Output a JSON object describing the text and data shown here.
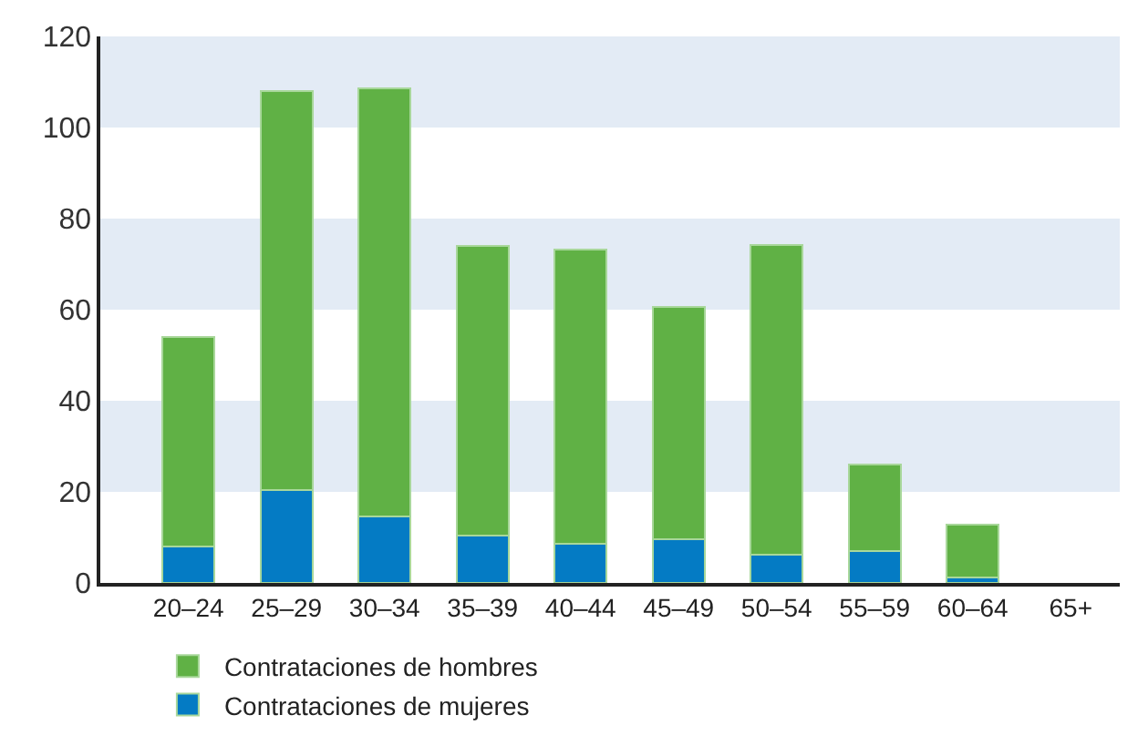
{
  "chart_data": {
    "type": "bar",
    "stacked": true,
    "categories": [
      "20–24",
      "25–29",
      "30–34",
      "35–39",
      "40–44",
      "45–49",
      "50–54",
      "55–59",
      "60–64",
      "65+"
    ],
    "series": [
      {
        "name": "Contrataciones de mujeres",
        "color": "#047bc4",
        "values": [
          8,
          20.5,
          14.6,
          10.5,
          8.7,
          9.7,
          6.2,
          7,
          1.2,
          null
        ]
      },
      {
        "name": "Contrataciones de hombres",
        "color": "#60b145",
        "values": [
          46,
          87.5,
          94,
          63.5,
          64.5,
          51,
          68,
          19,
          11.7,
          null
        ]
      }
    ],
    "ylim": [
      0,
      120
    ],
    "yticks": [
      0,
      20,
      40,
      60,
      80,
      100,
      120
    ],
    "grid": false,
    "legend": "bottom left",
    "bands": [
      {
        "axis": "y",
        "from": 20,
        "to": 40,
        "color": "#e3ebf5"
      },
      {
        "axis": "y",
        "from": 60,
        "to": 80,
        "color": "#e3ebf5"
      },
      {
        "axis": "y",
        "from": 100,
        "to": 120,
        "color": "#e3ebf5"
      }
    ]
  }
}
